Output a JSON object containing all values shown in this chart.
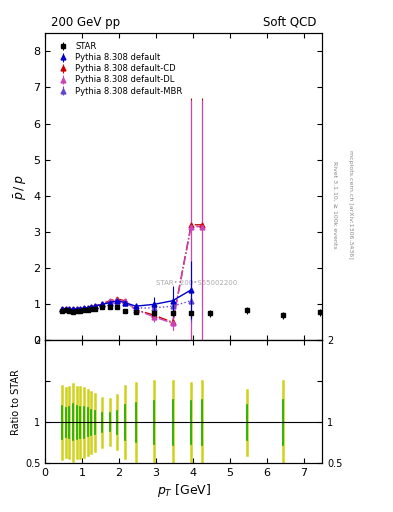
{
  "title_left": "200 GeV pp",
  "title_right": "Soft QCD",
  "ylabel_main": "$\\bar{p}\\,/\\,p$",
  "ylabel_ratio": "Ratio to STAR",
  "xlabel": "$p_T$ [GeV]",
  "right_label_top": "Rivet 3.1.10, ≥ 100k events",
  "right_label_bottom": "mcplots.cern.ch [arXiv:1306.3436]",
  "watermark": "STAR• 200•S65002200",
  "star_x": [
    0.45,
    0.55,
    0.65,
    0.75,
    0.85,
    0.95,
    1.05,
    1.15,
    1.25,
    1.35,
    1.55,
    1.75,
    1.95,
    2.15,
    2.45,
    2.95,
    3.45,
    3.95,
    4.45,
    5.45,
    6.45,
    7.45
  ],
  "star_y": [
    0.82,
    0.83,
    0.82,
    0.79,
    0.81,
    0.82,
    0.83,
    0.85,
    0.87,
    0.88,
    0.92,
    0.93,
    0.92,
    0.81,
    0.78,
    0.76,
    0.75,
    0.76,
    0.75,
    0.83,
    0.7,
    0.78
  ],
  "star_yerr": [
    0.04,
    0.03,
    0.03,
    0.03,
    0.03,
    0.03,
    0.03,
    0.03,
    0.03,
    0.03,
    0.04,
    0.04,
    0.05,
    0.05,
    0.06,
    0.07,
    0.08,
    0.09,
    0.09,
    0.09,
    0.1,
    0.1
  ],
  "py_default_x": [
    0.45,
    0.55,
    0.65,
    0.75,
    0.85,
    0.95,
    1.05,
    1.15,
    1.25,
    1.35,
    1.55,
    1.75,
    1.95,
    2.15,
    2.45,
    2.95,
    3.45,
    3.95
  ],
  "py_default_y": [
    0.88,
    0.88,
    0.87,
    0.87,
    0.88,
    0.88,
    0.9,
    0.91,
    0.93,
    0.95,
    1.0,
    1.05,
    1.1,
    1.05,
    0.95,
    1.0,
    1.1,
    1.4
  ],
  "py_default_yerr": [
    0.01,
    0.01,
    0.01,
    0.01,
    0.01,
    0.01,
    0.01,
    0.01,
    0.01,
    0.01,
    0.01,
    0.02,
    0.02,
    0.05,
    0.1,
    0.2,
    0.4,
    0.8
  ],
  "py_cd_x": [
    0.45,
    0.55,
    0.65,
    0.75,
    0.85,
    0.95,
    1.05,
    1.15,
    1.25,
    1.35,
    1.55,
    1.75,
    1.95,
    2.15,
    2.45,
    2.95,
    3.45,
    3.95,
    4.25
  ],
  "py_cd_y": [
    0.88,
    0.88,
    0.87,
    0.86,
    0.87,
    0.88,
    0.89,
    0.91,
    0.93,
    0.96,
    1.02,
    1.1,
    1.15,
    1.1,
    0.85,
    0.7,
    0.5,
    3.2,
    3.2
  ],
  "py_cd_yerr": [
    0.01,
    0.01,
    0.01,
    0.01,
    0.01,
    0.01,
    0.01,
    0.01,
    0.01,
    0.01,
    0.02,
    0.02,
    0.03,
    0.05,
    0.1,
    0.15,
    0.2,
    3.5,
    3.5
  ],
  "py_dl_x": [
    0.45,
    0.55,
    0.65,
    0.75,
    0.85,
    0.95,
    1.05,
    1.15,
    1.25,
    1.35,
    1.55,
    1.75,
    1.95,
    2.15,
    2.45,
    2.95,
    3.45,
    3.95,
    4.25
  ],
  "py_dl_y": [
    0.88,
    0.87,
    0.86,
    0.85,
    0.86,
    0.87,
    0.88,
    0.9,
    0.92,
    0.95,
    1.0,
    1.08,
    1.12,
    1.08,
    0.85,
    0.65,
    0.48,
    3.15,
    3.15
  ],
  "py_dl_yerr": [
    0.01,
    0.01,
    0.01,
    0.01,
    0.01,
    0.01,
    0.01,
    0.01,
    0.01,
    0.01,
    0.02,
    0.02,
    0.03,
    0.05,
    0.1,
    0.15,
    0.2,
    3.5,
    3.5
  ],
  "py_mbr_x": [
    0.45,
    0.55,
    0.65,
    0.75,
    0.85,
    0.95,
    1.05,
    1.15,
    1.25,
    1.35,
    1.55,
    1.75,
    1.95,
    2.15,
    2.45,
    2.95,
    3.45,
    3.95
  ],
  "py_mbr_y": [
    0.87,
    0.87,
    0.86,
    0.86,
    0.87,
    0.88,
    0.9,
    0.91,
    0.93,
    0.95,
    1.0,
    1.05,
    1.08,
    1.03,
    0.9,
    0.9,
    0.95,
    1.1
  ],
  "py_mbr_yerr": [
    0.01,
    0.01,
    0.01,
    0.01,
    0.01,
    0.01,
    0.01,
    0.01,
    0.01,
    0.01,
    0.01,
    0.02,
    0.02,
    0.04,
    0.08,
    0.15,
    0.3,
    0.6
  ],
  "ratio_lines_x": [
    0.45,
    0.55,
    0.65,
    0.75,
    0.85,
    0.95,
    1.05,
    1.15,
    1.25,
    1.35,
    1.55,
    1.75,
    1.95,
    2.15,
    2.45,
    2.95,
    3.45,
    3.95,
    4.25,
    5.45,
    6.45
  ],
  "ratio_yellow_lo": [
    0.55,
    0.58,
    0.57,
    0.53,
    0.57,
    0.57,
    0.58,
    0.6,
    0.63,
    0.65,
    0.7,
    0.72,
    0.67,
    0.56,
    0.52,
    0.5,
    0.5,
    0.52,
    0.5,
    0.6,
    0.5
  ],
  "ratio_yellow_hi": [
    1.45,
    1.42,
    1.43,
    1.47,
    1.43,
    1.43,
    1.42,
    1.4,
    1.37,
    1.35,
    1.3,
    1.28,
    1.33,
    1.44,
    1.48,
    1.5,
    1.5,
    1.48,
    1.5,
    1.4,
    1.5
  ],
  "ratio_green_lo": [
    0.8,
    0.82,
    0.81,
    0.78,
    0.8,
    0.81,
    0.81,
    0.83,
    0.85,
    0.86,
    0.88,
    0.89,
    0.86,
    0.79,
    0.76,
    0.74,
    0.73,
    0.74,
    0.73,
    0.79,
    0.73
  ],
  "ratio_green_hi": [
    1.2,
    1.18,
    1.19,
    1.22,
    1.2,
    1.19,
    1.19,
    1.17,
    1.15,
    1.14,
    1.12,
    1.11,
    1.14,
    1.21,
    1.24,
    1.26,
    1.27,
    1.26,
    1.27,
    1.21,
    1.27
  ],
  "xlim": [
    0.0,
    7.5
  ],
  "ylim_main": [
    0.0,
    8.5
  ],
  "ylim_ratio": [
    0.5,
    2.0
  ],
  "yticks_main": [
    0,
    1,
    2,
    3,
    4,
    5,
    6,
    7,
    8
  ],
  "color_star": "#000000",
  "color_default": "#0000cc",
  "color_cd": "#cc0000",
  "color_dl": "#cc44bb",
  "color_mbr": "#6644cc",
  "color_ratio_yellow": "#cccc00",
  "color_ratio_green": "#00aa00",
  "bg_color": "#ffffff"
}
